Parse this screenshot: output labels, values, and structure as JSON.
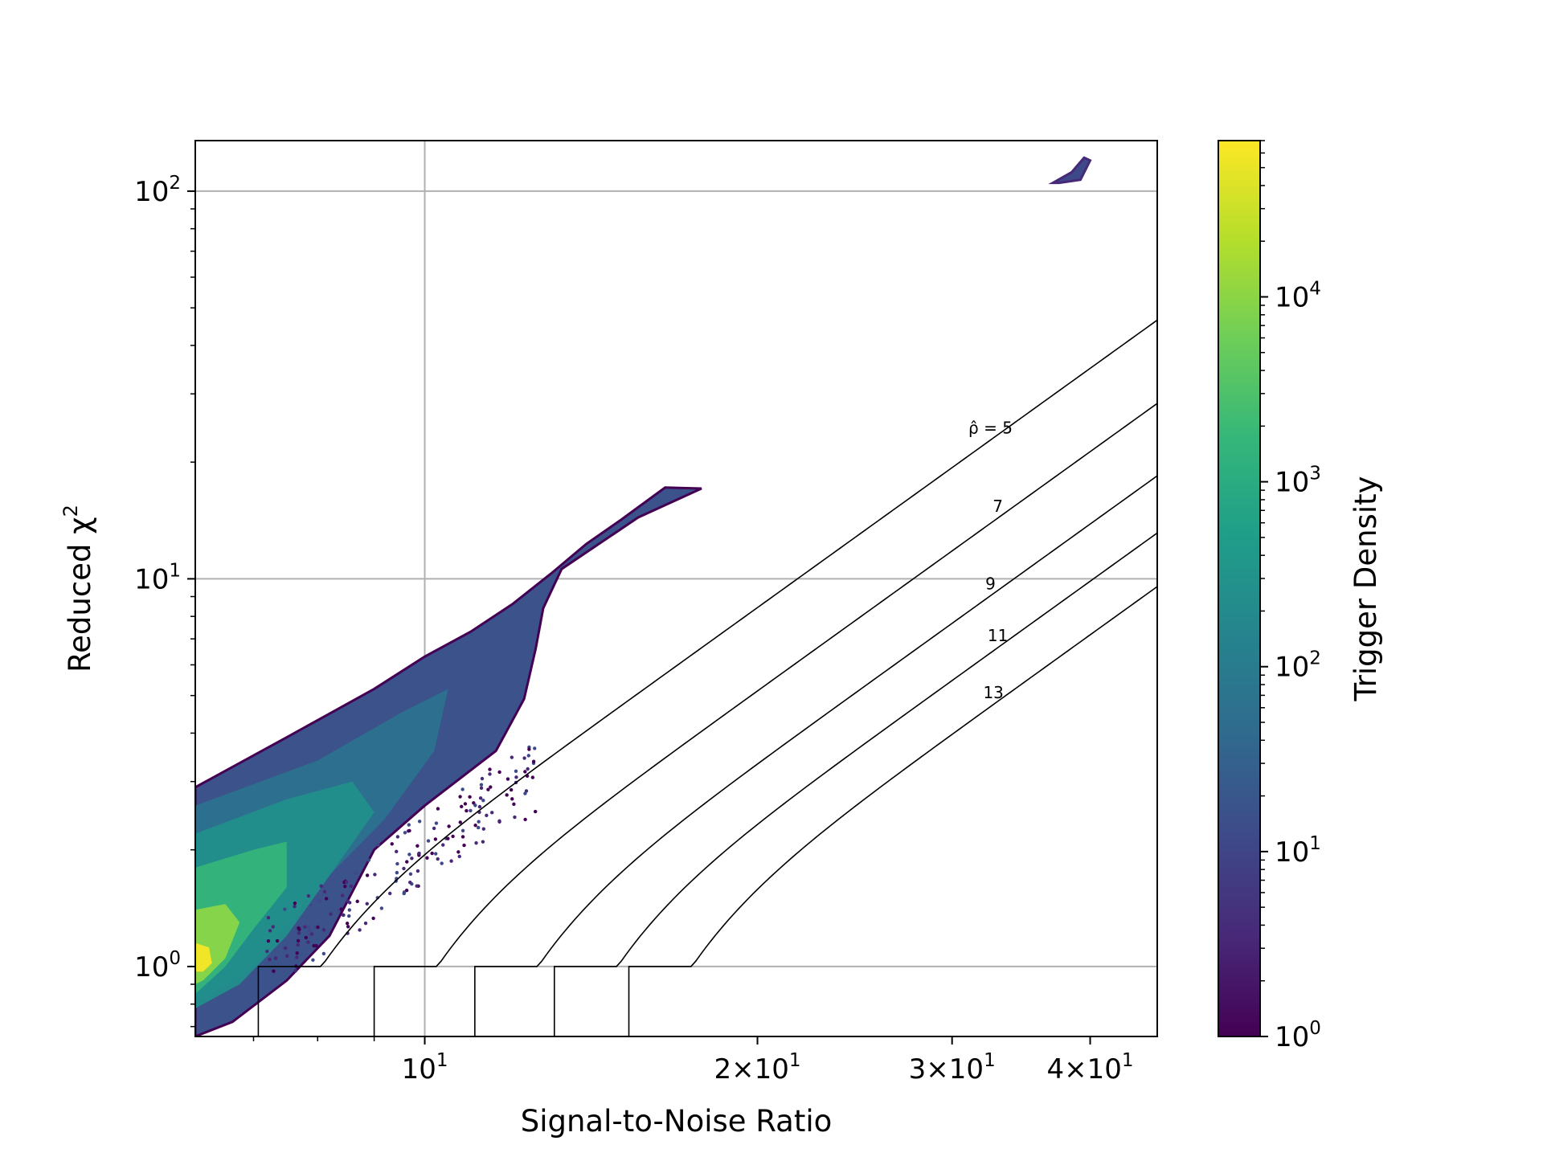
{
  "chart_data": {
    "type": "hexbin",
    "xlabel": "Signal-to-Noise Ratio",
    "ylabel_text": "Reduced χ",
    "ylabel_sup": "2",
    "x_scale": "log",
    "y_scale": "log",
    "xlim": [
      6.2,
      46
    ],
    "ylim": [
      0.66,
      135
    ],
    "grid": true,
    "x_major_ticks": [
      {
        "value": 10,
        "base": "10",
        "exp": "1"
      },
      {
        "value": 20,
        "base": "2×10",
        "exp": "1"
      },
      {
        "value": 30,
        "base": "3×10",
        "exp": "1"
      },
      {
        "value": 40,
        "base": "4×10",
        "exp": "1"
      }
    ],
    "x_minor_ticks": [
      7,
      8,
      9
    ],
    "y_major_ticks": [
      {
        "value": 1,
        "base": "10",
        "exp": "0"
      },
      {
        "value": 10,
        "base": "10",
        "exp": "1"
      },
      {
        "value": 100,
        "base": "10",
        "exp": "2"
      }
    ],
    "colorbar": {
      "label": "Trigger Density",
      "scale": "log",
      "range": [
        1,
        70000
      ],
      "colormap": "viridis",
      "ticks": [
        {
          "value": 1,
          "base": "10",
          "exp": "0"
        },
        {
          "value": 10,
          "base": "10",
          "exp": "1"
        },
        {
          "value": 100,
          "base": "10",
          "exp": "2"
        },
        {
          "value": 1000,
          "base": "10",
          "exp": "3"
        },
        {
          "value": 10000,
          "base": "10",
          "exp": "4"
        }
      ]
    },
    "contours": [
      {
        "level": 5,
        "label": "ρ̂ = 5",
        "snr_at_chisq1": 7.07,
        "label_snr": 32.5
      },
      {
        "level": 7,
        "label": "7",
        "snr_at_chisq1": 9.0,
        "label_snr": 33.0
      },
      {
        "level": 9,
        "label": "9",
        "snr_at_chisq1": 11.1,
        "label_snr": 32.5
      },
      {
        "level": 11,
        "label": "11",
        "snr_at_chisq1": 13.1,
        "label_snr": 33.0
      },
      {
        "level": 13,
        "label": "13",
        "snr_at_chisq1": 15.3,
        "label_snr": 32.7
      }
    ],
    "density_regions": [
      {
        "name": "main-cluster",
        "outline_snr_chisq": [
          [
            6.2,
            2.9
          ],
          [
            7.5,
            3.9
          ],
          [
            9,
            5.2
          ],
          [
            10,
            6.3
          ],
          [
            11,
            7.3
          ],
          [
            12,
            8.6
          ],
          [
            13,
            10.3
          ],
          [
            14,
            12.3
          ],
          [
            15,
            14.1
          ],
          [
            16.5,
            17.2
          ],
          [
            17.8,
            17.1
          ],
          [
            15.6,
            14.4
          ],
          [
            13.3,
            10.6
          ],
          [
            12.8,
            8.4
          ],
          [
            12.6,
            6.6
          ],
          [
            12.3,
            4.9
          ],
          [
            11.6,
            3.6
          ],
          [
            10,
            2.6
          ],
          [
            9,
            2
          ],
          [
            8.2,
            1.2
          ],
          [
            7.5,
            0.92
          ],
          [
            6.7,
            0.72
          ],
          [
            6.2,
            0.66
          ]
        ],
        "peak_density": 70000,
        "peak_snr": 6.3,
        "peak_chisq": 1.05
      },
      {
        "name": "isolated-cluster",
        "outline_snr_chisq": [
          [
            37,
            105
          ],
          [
            38.5,
            112
          ],
          [
            39.5,
            122
          ],
          [
            40,
            120
          ],
          [
            39.2,
            107
          ],
          [
            37.5,
            105
          ]
        ],
        "density": 12
      }
    ]
  }
}
